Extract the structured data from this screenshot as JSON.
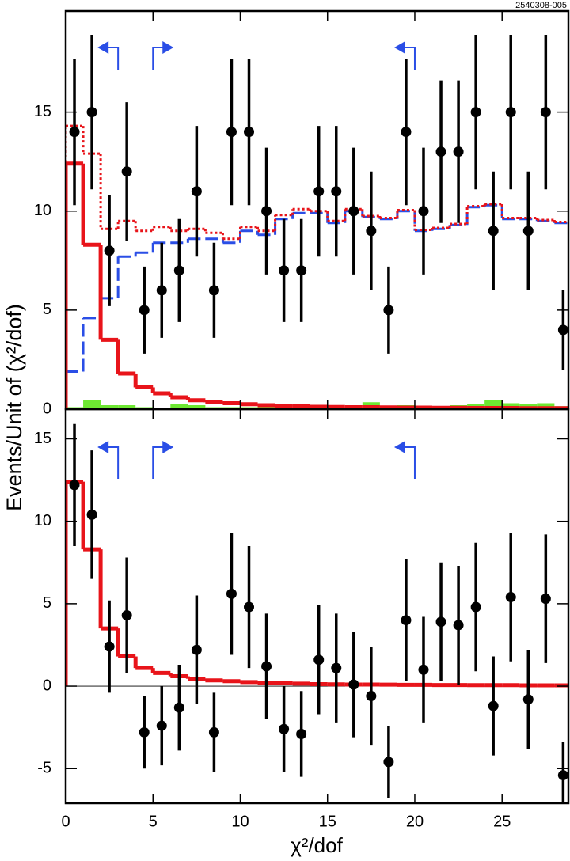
{
  "chart_data": [
    {
      "type": "histogram",
      "annotation": "2540308-005",
      "ylabel": "Events/Unit of (χ²/dof)",
      "xlim": [
        0,
        28.8
      ],
      "ylim": [
        0,
        20.1
      ],
      "xticks": [
        0,
        5,
        10,
        15,
        20,
        25
      ],
      "yticks": [
        0,
        5,
        10,
        15
      ],
      "bins": [
        0,
        1,
        2,
        3,
        4,
        5,
        6,
        7,
        8,
        9,
        10,
        11,
        12,
        13,
        14,
        15,
        16,
        17,
        18,
        19,
        20,
        21,
        22,
        23,
        24,
        25,
        26,
        27,
        28,
        29
      ],
      "series": [
        {
          "style": "filled",
          "color": "#6ee832",
          "values": [
            0.1,
            0.45,
            0.2,
            0.2,
            0.1,
            0,
            0.25,
            0.2,
            0.1,
            0.1,
            0.1,
            0.1,
            0.1,
            0.05,
            0.05,
            0,
            0.05,
            0.35,
            0.15,
            0.2,
            0.05,
            0,
            0.2,
            0.25,
            0.45,
            0.3,
            0.25,
            0.3,
            0.15
          ]
        },
        {
          "style": "dashed",
          "color": "#2a4ee6",
          "values": [
            1.9,
            4.6,
            5.6,
            7.7,
            7.9,
            8.4,
            8.4,
            8.6,
            8.6,
            8.4,
            9.0,
            8.8,
            9.6,
            9.9,
            9.9,
            9.4,
            10.0,
            9.7,
            9.6,
            10.0,
            9.0,
            9.1,
            9.3,
            10.2,
            10.3,
            9.6,
            9.6,
            9.5,
            9.4
          ]
        },
        {
          "style": "dotted",
          "color": "#e8141a",
          "values": [
            14.3,
            12.9,
            9.1,
            9.5,
            9.0,
            9.2,
            9.0,
            9.1,
            8.9,
            8.6,
            9.2,
            9.0,
            9.8,
            10.1,
            10.0,
            9.5,
            10.1,
            9.75,
            9.65,
            10.05,
            9.05,
            9.15,
            9.35,
            10.25,
            10.35,
            9.65,
            9.65,
            9.55,
            9.45
          ]
        },
        {
          "style": "solid",
          "color": "#e8141a",
          "values": [
            12.4,
            8.3,
            3.5,
            1.8,
            1.1,
            0.8,
            0.6,
            0.45,
            0.35,
            0.3,
            0.25,
            0.2,
            0.18,
            0.15,
            0.12,
            0.11,
            0.1,
            0.1,
            0.09,
            0.08,
            0.08,
            0.07,
            0.07,
            0.06,
            0.06,
            0.06,
            0.05,
            0.05,
            0.05
          ]
        }
      ],
      "points": {
        "color": "#000000",
        "x": [
          0.5,
          1.5,
          2.5,
          3.5,
          4.5,
          5.5,
          6.5,
          7.5,
          8.5,
          9.5,
          10.5,
          11.5,
          12.5,
          13.5,
          14.5,
          15.5,
          16.5,
          17.5,
          18.5,
          19.5,
          20.5,
          21.5,
          22.5,
          23.5,
          24.5,
          25.5,
          26.5,
          27.5,
          28.5
        ],
        "values": [
          14,
          15,
          8,
          12,
          5,
          6,
          7,
          11,
          6,
          14,
          14,
          10,
          7,
          7,
          11,
          11,
          10,
          9,
          5,
          14,
          10,
          13,
          13,
          15,
          9,
          15,
          9,
          15,
          4
        ],
        "errors": [
          3.7,
          3.9,
          2.8,
          3.5,
          2.2,
          2.4,
          2.6,
          3.3,
          2.4,
          3.7,
          3.7,
          3.2,
          2.6,
          2.6,
          3.3,
          3.3,
          3.2,
          3.0,
          2.2,
          3.7,
          3.2,
          3.6,
          3.6,
          3.9,
          3.0,
          3.9,
          3.0,
          3.9,
          2.0
        ]
      },
      "arrows": {
        "color": "#2a4ee6",
        "items": [
          {
            "x": 3,
            "direction": "left"
          },
          {
            "x": 5,
            "direction": "right"
          },
          {
            "x": 20,
            "direction": "left"
          }
        ]
      }
    },
    {
      "type": "histogram",
      "xlabel": "χ²/dof",
      "xlim": [
        0,
        28.8
      ],
      "ylim": [
        -7.1,
        16.8
      ],
      "xticks": [
        0,
        5,
        10,
        15,
        20,
        25
      ],
      "yticks": [
        -5,
        0,
        5,
        10,
        15
      ],
      "zero_line": true,
      "bins": [
        0,
        1,
        2,
        3,
        4,
        5,
        6,
        7,
        8,
        9,
        10,
        11,
        12,
        13,
        14,
        15,
        16,
        17,
        18,
        19,
        20,
        21,
        22,
        23,
        24,
        25,
        26,
        27,
        28,
        29
      ],
      "series": [
        {
          "style": "solid",
          "color": "#e8141a",
          "values": [
            12.4,
            8.3,
            3.5,
            1.8,
            1.1,
            0.8,
            0.6,
            0.45,
            0.35,
            0.3,
            0.25,
            0.2,
            0.18,
            0.15,
            0.12,
            0.11,
            0.1,
            0.1,
            0.09,
            0.08,
            0.08,
            0.07,
            0.07,
            0.06,
            0.06,
            0.06,
            0.05,
            0.05,
            0.05
          ]
        }
      ],
      "points": {
        "color": "#000000",
        "x": [
          0.5,
          1.5,
          2.5,
          3.5,
          4.5,
          5.5,
          6.5,
          7.5,
          8.5,
          9.5,
          10.5,
          11.5,
          12.5,
          13.5,
          14.5,
          15.5,
          16.5,
          17.5,
          18.5,
          19.5,
          20.5,
          21.5,
          22.5,
          23.5,
          24.5,
          25.5,
          26.5,
          27.5,
          28.5
        ],
        "values": [
          12.2,
          10.4,
          2.4,
          4.3,
          -2.8,
          -2.4,
          -1.3,
          2.2,
          -2.8,
          5.6,
          4.8,
          1.2,
          -2.6,
          -2.9,
          1.6,
          1.1,
          0.1,
          -0.6,
          -4.6,
          4.0,
          1.0,
          3.9,
          3.7,
          4.8,
          -1.2,
          5.4,
          -0.8,
          5.3,
          -5.4
        ],
        "errors": [
          3.7,
          3.9,
          2.8,
          3.5,
          2.2,
          2.4,
          2.6,
          3.3,
          2.4,
          3.7,
          3.7,
          3.2,
          2.6,
          2.6,
          3.3,
          3.3,
          3.2,
          3.0,
          2.2,
          3.7,
          3.2,
          3.6,
          3.6,
          3.9,
          3.0,
          3.9,
          3.0,
          3.9,
          2.0
        ]
      },
      "arrows": {
        "color": "#2a4ee6",
        "items": [
          {
            "x": 3,
            "direction": "left"
          },
          {
            "x": 5,
            "direction": "right"
          },
          {
            "x": 20,
            "direction": "left"
          }
        ]
      }
    }
  ]
}
